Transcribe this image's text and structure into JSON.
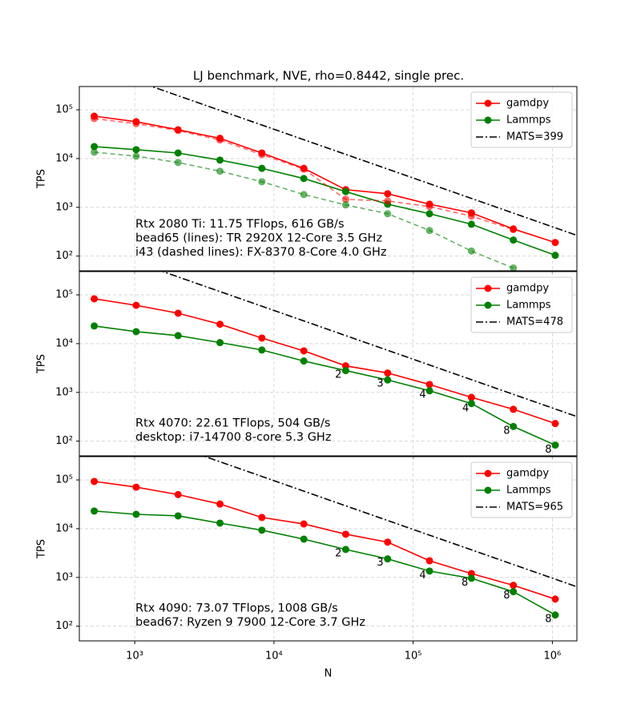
{
  "chart_data": [
    {
      "type": "line",
      "title": "LJ benchmark, NVE, rho=0.8442, single prec.",
      "ylabel": "TPS",
      "x": [
        512,
        1024,
        2048,
        4096,
        8192,
        16384,
        32768,
        65536,
        131072,
        262144,
        524288,
        1048576
      ],
      "xscale": "log",
      "yscale": "log",
      "grid": true,
      "legend": "upper right",
      "xlim": [
        400,
        1500000
      ],
      "ylim": [
        50,
        300000
      ],
      "xticks": [
        1000,
        10000,
        100000,
        1000000
      ],
      "yticks": [
        {
          "value": 100,
          "label": "10²"
        },
        {
          "value": 1000,
          "label": "10³"
        },
        {
          "value": 10000,
          "label": "10⁴"
        },
        {
          "value": 100000,
          "label": "10⁵"
        }
      ],
      "text_lines": [
        "Rtx 2080 Ti: 11.75 TFlops, 616 GB/s",
        "bead65 (lines): TR 2920X 12-Core 3.5 GHz",
        "i43 (dashed lines): FX-8370 8-Core 4.0 GHz"
      ],
      "series": [
        {
          "name": "gamdpy",
          "color": "#ff0000",
          "linestyle": "solid",
          "values": [
            74000,
            57000,
            39000,
            26000,
            13000,
            6300,
            2300,
            1900,
            1160,
            770,
            360,
            190
          ]
        },
        {
          "name": "Lammps",
          "color": "#008000",
          "linestyle": "solid",
          "values": [
            17600,
            15200,
            13000,
            9300,
            6300,
            3900,
            2100,
            1160,
            740,
            450,
            213,
            104
          ]
        },
        {
          "color": "#ff0000",
          "linestyle": "dashed",
          "values": [
            66000,
            52000,
            37500,
            24000,
            12000,
            6100,
            1460,
            1350,
            1040,
            660,
            350,
            null
          ]
        },
        {
          "color": "#008000",
          "linestyle": "dashed",
          "values": [
            13500,
            11200,
            8300,
            5500,
            3350,
            1830,
            1120,
            740,
            335,
            127,
            57,
            null
          ]
        },
        {
          "name": "MATS=399",
          "color": "#000000",
          "linestyle": "dashdot",
          "x": [
            500,
            1500000
          ],
          "values": [
            798000,
            266
          ]
        }
      ]
    },
    {
      "type": "line",
      "ylabel": "TPS",
      "x": [
        512,
        1024,
        2048,
        4096,
        8192,
        16384,
        32768,
        65536,
        131072,
        262144,
        524288,
        1048576
      ],
      "xscale": "log",
      "yscale": "log",
      "grid": true,
      "legend": "upper right",
      "xlim": [
        400,
        1500000
      ],
      "ylim": [
        50,
        300000
      ],
      "xticks": [
        1000,
        10000,
        100000,
        1000000
      ],
      "yticks": [
        {
          "value": 100,
          "label": "10²"
        },
        {
          "value": 1000,
          "label": "10³"
        },
        {
          "value": 10000,
          "label": "10⁴"
        },
        {
          "value": 100000,
          "label": "10⁵"
        }
      ],
      "text_lines": [
        "Rtx 4070: 22.61 TFlops, 504 GB/s",
        "desktop: i7-14700 8-core 5.3 GHz"
      ],
      "annotations": [
        {
          "text": "2",
          "x": 29000,
          "y": 2300
        },
        {
          "text": "3",
          "x": 58000,
          "y": 1500
        },
        {
          "text": "4",
          "x": 117000,
          "y": 890
        },
        {
          "text": "4",
          "x": 238000,
          "y": 470
        },
        {
          "text": "8",
          "x": 470000,
          "y": 160
        },
        {
          "text": "8",
          "x": 935000,
          "y": 66
        }
      ],
      "series": [
        {
          "name": "gamdpy",
          "color": "#ff0000",
          "linestyle": "solid",
          "values": [
            83000,
            61000,
            42000,
            25000,
            13000,
            7100,
            3500,
            2500,
            1450,
            790,
            450,
            230
          ]
        },
        {
          "name": "Lammps",
          "color": "#008000",
          "linestyle": "solid",
          "values": [
            23000,
            17600,
            14600,
            10500,
            7400,
            4400,
            2800,
            1800,
            1080,
            590,
            200,
            83
          ]
        },
        {
          "name": "MATS=478",
          "color": "#000000",
          "linestyle": "dashdot",
          "x": [
            500,
            1500000
          ],
          "values": [
            956000,
            319
          ]
        }
      ]
    },
    {
      "type": "line",
      "ylabel": "TPS",
      "xlabel": "N",
      "x": [
        512,
        1024,
        2048,
        4096,
        8192,
        16384,
        32768,
        65536,
        131072,
        262144,
        524288,
        1048576
      ],
      "xscale": "log",
      "yscale": "log",
      "grid": true,
      "legend": "upper right",
      "xlim": [
        400,
        1500000
      ],
      "ylim": [
        50,
        300000
      ],
      "xticks": [
        {
          "value": 1000,
          "label": "10³"
        },
        {
          "value": 10000,
          "label": "10⁴"
        },
        {
          "value": 100000,
          "label": "10⁵"
        },
        {
          "value": 1000000,
          "label": "10⁶"
        }
      ],
      "yticks": [
        {
          "value": 100,
          "label": "10²"
        },
        {
          "value": 1000,
          "label": "10³"
        },
        {
          "value": 10000,
          "label": "10⁴"
        },
        {
          "value": 100000,
          "label": "10⁵"
        }
      ],
      "text_lines": [
        "Rtx 4090: 73.07 TFlops, 1008 GB/s",
        "bead67: Ryzen 9 7900 12-Core 3.7 GHz"
      ],
      "annotations": [
        {
          "text": "2",
          "x": 29000,
          "y": 3100
        },
        {
          "text": "3",
          "x": 58000,
          "y": 2000
        },
        {
          "text": "4",
          "x": 117000,
          "y": 1100
        },
        {
          "text": "8",
          "x": 235000,
          "y": 770
        },
        {
          "text": "8",
          "x": 470000,
          "y": 420
        },
        {
          "text": "8",
          "x": 935000,
          "y": 140
        }
      ],
      "series": [
        {
          "name": "gamdpy",
          "color": "#ff0000",
          "linestyle": "solid",
          "values": [
            93000,
            71000,
            50000,
            32000,
            17000,
            12500,
            7700,
            5300,
            2200,
            1200,
            690,
            360
          ]
        },
        {
          "name": "Lammps",
          "color": "#008000",
          "linestyle": "solid",
          "values": [
            23000,
            19700,
            18300,
            13000,
            9300,
            6100,
            3750,
            2400,
            1350,
            960,
            510,
            170
          ]
        },
        {
          "name": "MATS=965",
          "color": "#000000",
          "linestyle": "dashdot",
          "x": [
            500,
            1500000
          ],
          "values": [
            1930000,
            643
          ]
        }
      ]
    }
  ]
}
